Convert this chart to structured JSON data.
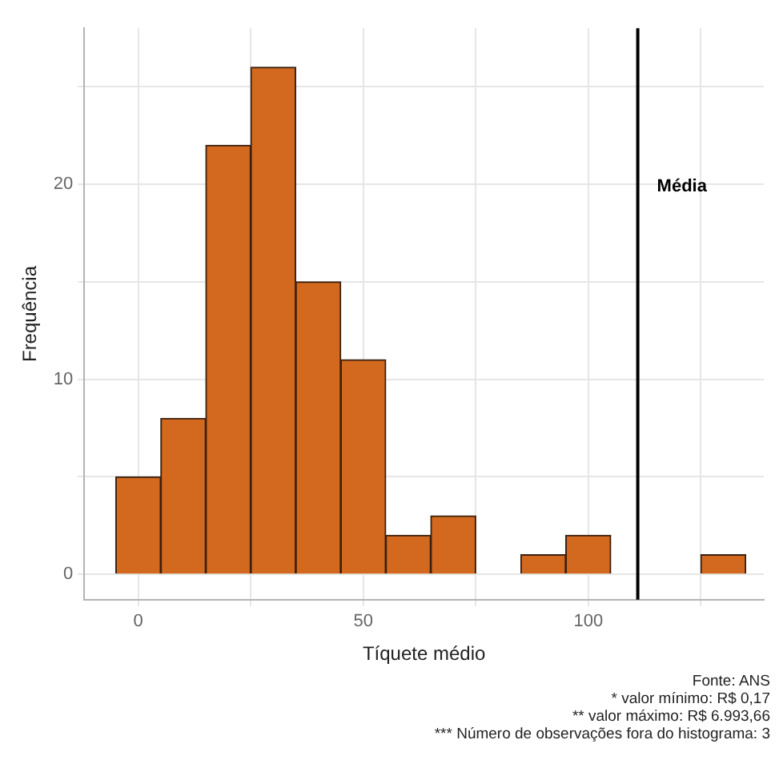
{
  "chart_data": {
    "type": "histogram",
    "xlabel": "Tíquete médio",
    "ylabel": "Frequência",
    "bins": [
      -5,
      5,
      15,
      25,
      35,
      45,
      55,
      65,
      75,
      85,
      95,
      105,
      115,
      125,
      135
    ],
    "values": [
      5,
      8,
      22,
      26,
      15,
      11,
      2,
      3,
      0,
      1,
      2,
      0,
      0,
      1
    ],
    "color": "#d2691e",
    "xlim": [
      -12,
      139
    ],
    "ylim": [
      -1.3,
      28
    ],
    "xticks": [
      0,
      {
        "value": 25,
        "label": null
      },
      50,
      {
        "value": 75,
        "label": null
      },
      100,
      {
        "value": 125,
        "label": null
      }
    ],
    "yticks": [
      0,
      {
        "value": 5,
        "label": null
      },
      10,
      {
        "value": 15,
        "label": null
      },
      20,
      {
        "value": 25,
        "label": null
      }
    ],
    "grid": true,
    "legend": false,
    "ref_lines": [
      {
        "axis": "x",
        "value": 111,
        "label": "Média",
        "color": "#000000"
      }
    ],
    "annotations": [
      "Fonte: ANS",
      "* valor mínimo: R$ 0,17",
      "** valor máximo: R$ 6.993,66",
      "*** Número de observações fora do histograma: 3"
    ]
  }
}
